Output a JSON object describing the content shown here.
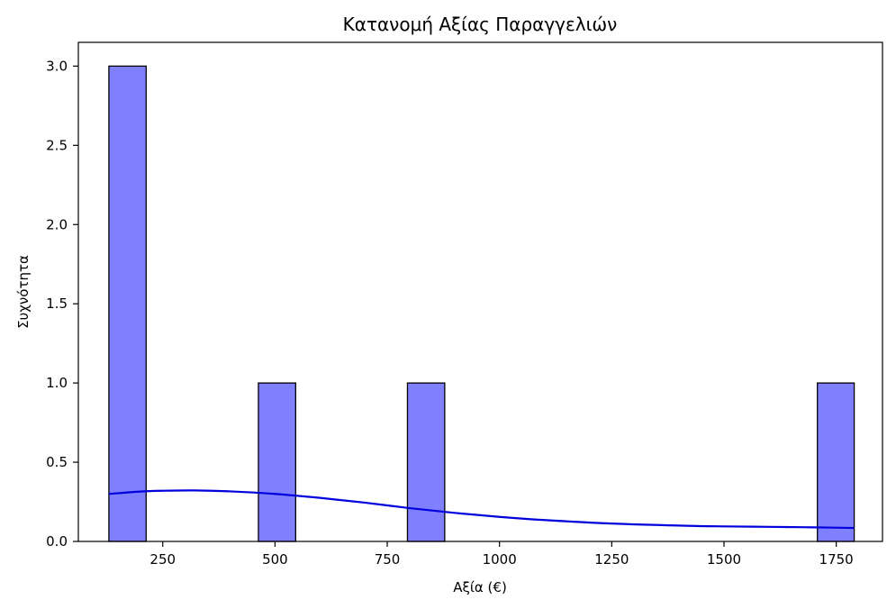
{
  "chart_data": {
    "type": "bar",
    "title": "Κατανομή Αξίας Παραγγελιών",
    "xlabel": "Αξία (€)",
    "ylabel": "Συχνότητα",
    "xlim": [
      62,
      1853
    ],
    "ylim": [
      0,
      3.15
    ],
    "xticks": [
      250,
      500,
      750,
      1000,
      1250,
      1500,
      1750
    ],
    "yticks": [
      0.0,
      0.5,
      1.0,
      1.5,
      2.0,
      2.5,
      3.0
    ],
    "xtick_labels": [
      "250",
      "500",
      "750",
      "1000",
      "1250",
      "1500",
      "1750"
    ],
    "ytick_labels": [
      "0.0",
      "0.5",
      "1.0",
      "1.5",
      "2.0",
      "2.5",
      "3.0"
    ],
    "bars": [
      {
        "x0": 130,
        "x1": 213,
        "count": 3
      },
      {
        "x0": 463,
        "x1": 546,
        "count": 1
      },
      {
        "x0": 795,
        "x1": 878,
        "count": 1
      },
      {
        "x0": 1708,
        "x1": 1790,
        "count": 1
      }
    ],
    "kde": {
      "x": [
        130,
        200,
        250,
        320,
        400,
        500,
        600,
        700,
        800,
        900,
        1000,
        1100,
        1250,
        1400,
        1500,
        1600,
        1700,
        1790
      ],
      "y": [
        0.3,
        0.315,
        0.32,
        0.322,
        0.316,
        0.3,
        0.275,
        0.245,
        0.21,
        0.18,
        0.155,
        0.135,
        0.113,
        0.1,
        0.095,
        0.092,
        0.089,
        0.085
      ]
    },
    "grid": false,
    "colors": {
      "bar_fill": "#8080ff",
      "bar_edge": "#000000",
      "kde_line": "#0000dd"
    }
  }
}
